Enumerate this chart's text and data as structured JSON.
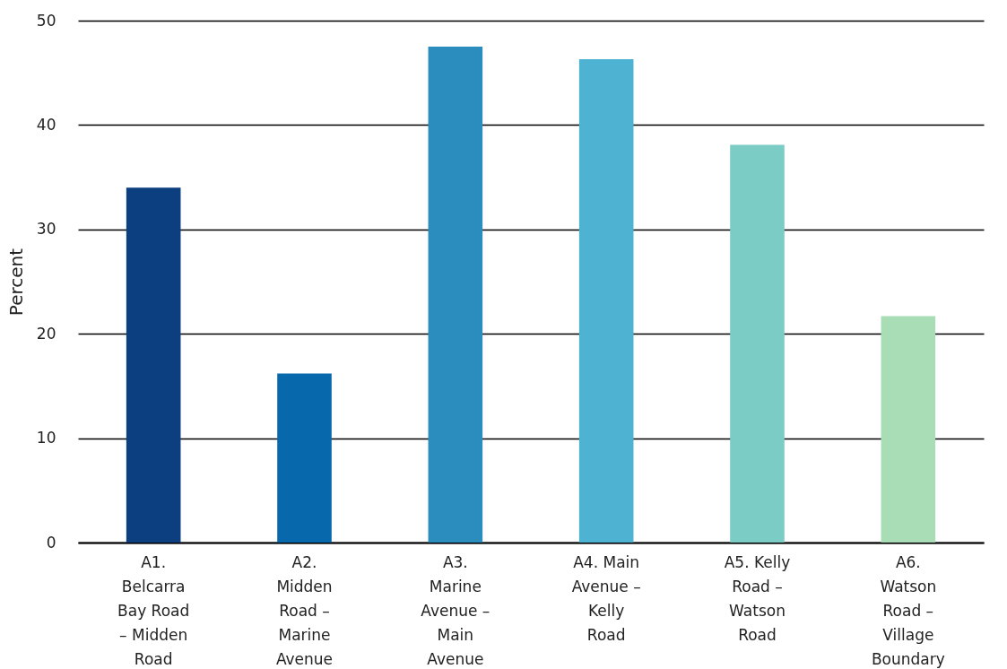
{
  "chart_data": {
    "type": "bar",
    "ylabel": "Percent",
    "categories": [
      "A1. Belcarra Bay Road – Midden Road",
      "A2. Midden Road – Marine Avenue",
      "A3. Marine Avenue – Main Avenue",
      "A4. Main Avenue – Kelly Road",
      "A5. Kelly Road – Watson Road",
      "A6. Watson Road – Village Boundary"
    ],
    "values": [
      34,
      16.2,
      47.5,
      46.3,
      38.1,
      21.7
    ],
    "colors": [
      "#0b3f7f",
      "#0868ac",
      "#2b8cbe",
      "#4eb3d3",
      "#7bccc4",
      "#a8ddb5"
    ],
    "ylim": [
      0,
      50
    ],
    "yticks": [
      0,
      10,
      20,
      30,
      40,
      50
    ],
    "grid": "y",
    "legend": false
  }
}
